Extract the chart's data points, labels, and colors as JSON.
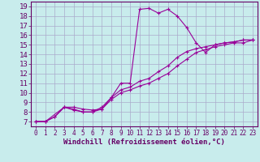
{
  "background_color": "#c8ecec",
  "grid_color": "#aaaacc",
  "line_color": "#990099",
  "marker_color": "#990099",
  "xlabel": "Windchill (Refroidissement éolien,°C)",
  "ylabel_ticks": [
    7,
    8,
    9,
    10,
    11,
    12,
    13,
    14,
    15,
    16,
    17,
    18,
    19
  ],
  "xlabel_ticks": [
    0,
    1,
    2,
    3,
    4,
    5,
    6,
    7,
    8,
    9,
    10,
    11,
    12,
    13,
    14,
    15,
    16,
    17,
    18,
    19,
    20,
    21,
    22,
    23
  ],
  "ylim": [
    6.5,
    19.5
  ],
  "xlim": [
    -0.5,
    23.5
  ],
  "curve1_x": [
    0,
    1,
    2,
    3,
    4,
    5,
    6,
    7,
    8,
    9,
    10,
    11,
    12,
    13,
    14,
    15,
    16,
    17,
    18,
    19,
    20,
    21,
    22,
    23
  ],
  "curve1_y": [
    7.0,
    7.0,
    7.5,
    8.5,
    8.5,
    8.3,
    8.2,
    8.3,
    9.5,
    11.0,
    11.0,
    18.7,
    18.8,
    18.3,
    18.7,
    18.0,
    16.8,
    15.2,
    14.2,
    15.0,
    15.2,
    15.3,
    15.5,
    15.5
  ],
  "curve2_x": [
    0,
    1,
    3,
    4,
    5,
    6,
    7,
    8,
    9,
    10,
    11,
    12,
    13,
    14,
    15,
    16,
    17,
    18,
    19,
    20,
    21,
    22,
    23
  ],
  "curve2_y": [
    7.0,
    7.0,
    8.5,
    8.2,
    8.0,
    8.0,
    8.5,
    9.5,
    10.3,
    10.6,
    11.2,
    11.5,
    12.2,
    12.8,
    13.7,
    14.3,
    14.6,
    14.8,
    15.0,
    15.2,
    15.3,
    15.5,
    15.5
  ],
  "curve3_x": [
    0,
    1,
    2,
    3,
    4,
    5,
    6,
    7,
    8,
    9,
    10,
    11,
    12,
    13,
    14,
    15,
    16,
    17,
    18,
    19,
    20,
    21,
    22,
    23
  ],
  "curve3_y": [
    7.0,
    7.0,
    7.5,
    8.5,
    8.3,
    8.0,
    8.0,
    8.3,
    9.3,
    10.0,
    10.3,
    10.7,
    11.0,
    11.5,
    12.0,
    12.8,
    13.5,
    14.2,
    14.5,
    14.8,
    15.0,
    15.2,
    15.2,
    15.5
  ],
  "axis_color": "#660066",
  "xlabel_fontsize": 6.5,
  "ytick_fontsize": 6.5,
  "xtick_fontsize": 5.5,
  "figwidth": 3.2,
  "figheight": 2.0,
  "dpi": 100
}
